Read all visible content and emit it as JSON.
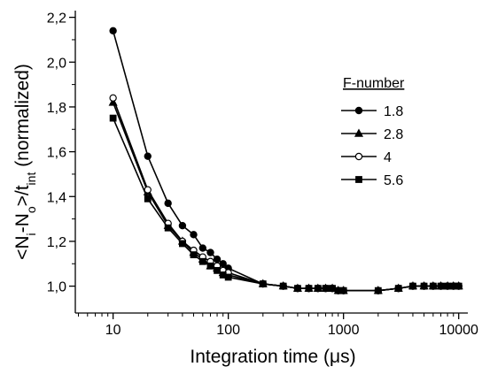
{
  "chart_data": {
    "type": "line",
    "x_label": "Integration time (μs)",
    "y_label_parts": [
      "<N",
      "i",
      "-N",
      "o",
      ">/t",
      "int",
      " (normalized)"
    ],
    "legend_title": "F-number",
    "legend": "right",
    "x_log": true,
    "xlim": [
      4.7,
      12000
    ],
    "xticks": [
      10,
      100,
      1000,
      10000
    ],
    "ylim": [
      0.88,
      2.23
    ],
    "yticks": [
      {
        "value": 1.0,
        "label": "1,0"
      },
      {
        "value": 1.2,
        "label": "1,2"
      },
      {
        "value": 1.4,
        "label": "1,4"
      },
      {
        "value": 1.6,
        "label": "1,6"
      },
      {
        "value": 1.8,
        "label": "1,8"
      },
      {
        "value": 2.0,
        "label": "2,0"
      },
      {
        "value": 2.2,
        "label": "2,2"
      }
    ],
    "x": [
      10,
      20,
      30,
      40,
      50,
      60,
      70,
      80,
      90,
      100,
      200,
      300,
      400,
      500,
      600,
      700,
      800,
      900,
      1000,
      2000,
      3000,
      4000,
      5000,
      6000,
      7000,
      8000,
      9000,
      10000
    ],
    "series": [
      {
        "name": "1.8",
        "color": "#000000",
        "marker": "circle-filled",
        "values": [
          2.14,
          1.58,
          1.37,
          1.27,
          1.23,
          1.17,
          1.15,
          1.12,
          1.1,
          1.08,
          1.01,
          1.0,
          0.99,
          0.99,
          0.99,
          0.99,
          0.99,
          0.98,
          0.98,
          0.98,
          0.99,
          1.0,
          1.0,
          1.0,
          1.0,
          1.0,
          1.0,
          1.0
        ]
      },
      {
        "name": "2.8",
        "color": "#000000",
        "marker": "triangle",
        "values": [
          1.82,
          1.42,
          1.27,
          1.2,
          1.15,
          1.12,
          1.09,
          1.08,
          1.06,
          1.05,
          1.01,
          1.0,
          0.99,
          0.99,
          0.99,
          0.99,
          0.99,
          0.98,
          0.98,
          0.98,
          0.99,
          1.0,
          1.0,
          1.0,
          1.0,
          1.0,
          1.0,
          1.0
        ]
      },
      {
        "name": "4",
        "color": "#000000",
        "marker": "circle-open",
        "values": [
          1.84,
          1.43,
          1.28,
          1.2,
          1.16,
          1.13,
          1.11,
          1.09,
          1.07,
          1.06,
          1.01,
          1.0,
          0.99,
          0.99,
          0.99,
          0.99,
          0.99,
          0.98,
          0.98,
          0.98,
          0.99,
          1.0,
          1.0,
          1.0,
          1.0,
          1.0,
          1.0,
          1.0
        ]
      },
      {
        "name": "5.6",
        "color": "#000000",
        "marker": "square",
        "values": [
          1.75,
          1.39,
          1.26,
          1.19,
          1.14,
          1.11,
          1.09,
          1.07,
          1.05,
          1.04,
          1.01,
          1.0,
          0.99,
          0.99,
          0.99,
          0.99,
          0.99,
          0.98,
          0.98,
          0.98,
          0.99,
          1.0,
          1.0,
          1.0,
          1.0,
          1.0,
          1.0,
          1.0
        ]
      }
    ]
  }
}
